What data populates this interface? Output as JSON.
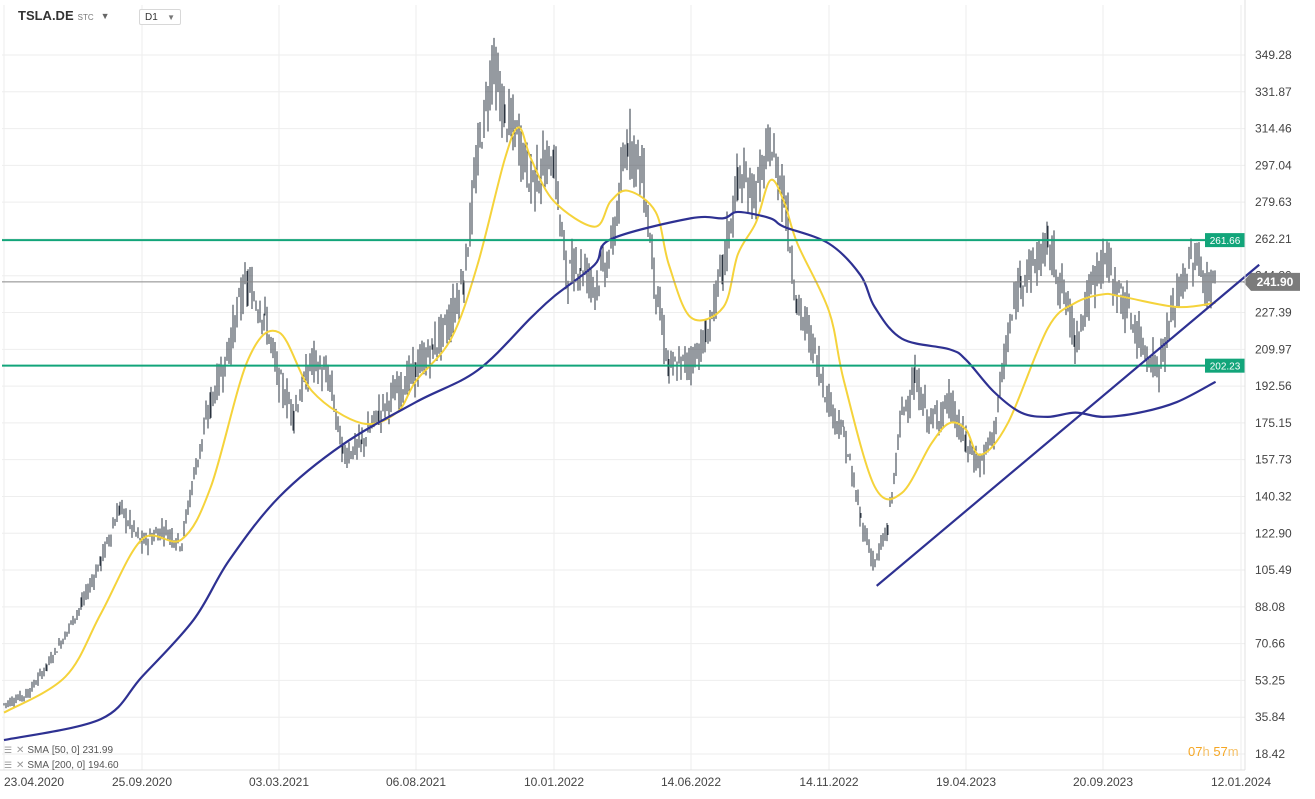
{
  "toolbar": {
    "symbol": "TSLA.DE",
    "exchange": "STC",
    "timeframe": "D1"
  },
  "indicators": [
    {
      "label": "SMA",
      "params": "[50, 0]",
      "value": "231.99",
      "color": "#f5d33b"
    },
    {
      "label": "SMA",
      "params": "[200, 0]",
      "value": "194.60",
      "color": "#2e3192"
    }
  ],
  "countdown": {
    "hours": "07",
    "h_unit": "h",
    "minutes": "57",
    "m_unit": "m"
  },
  "price_label": {
    "value": "241.90"
  },
  "chart_data": {
    "type": "candlestick",
    "title": "",
    "ylim": [
      18.42,
      368
    ],
    "y_ticks": [
      349.28,
      331.87,
      314.46,
      297.04,
      279.63,
      262.21,
      244.8,
      227.39,
      209.97,
      192.56,
      175.15,
      157.73,
      140.32,
      122.9,
      105.49,
      88.08,
      70.66,
      53.25,
      35.84,
      18.42
    ],
    "x_ticks": [
      "23.04.2020",
      "25.09.2020",
      "03.03.2021",
      "06.08.2021",
      "10.01.2022",
      "14.06.2022",
      "14.11.2022",
      "19.04.2023",
      "20.09.2023",
      "12.01.2024"
    ],
    "grid": true,
    "price_series": {
      "name": "TSLA.DE",
      "color": "#2b3440",
      "points": [
        [
          "23.04.2020",
          42
        ],
        [
          "20.05.2020",
          47
        ],
        [
          "10.06.2020",
          60
        ],
        [
          "01.07.2020",
          75
        ],
        [
          "20.07.2020",
          90
        ],
        [
          "10.08.2020",
          110
        ],
        [
          "31.08.2020",
          135
        ],
        [
          "25.09.2020",
          118
        ],
        [
          "20.10.2020",
          125
        ],
        [
          "10.11.2020",
          118
        ],
        [
          "24.11.2020",
          150
        ],
        [
          "14.12.2020",
          185
        ],
        [
          "04.01.2021",
          210
        ],
        [
          "18.01.2021",
          235
        ],
        [
          "26.01.2021",
          240
        ],
        [
          "15.02.2021",
          225
        ],
        [
          "03.03.2021",
          195
        ],
        [
          "20.03.2021",
          180
        ],
        [
          "10.04.2021",
          205
        ],
        [
          "30.04.2021",
          195
        ],
        [
          "15.05.2021",
          160
        ],
        [
          "05.06.2021",
          165
        ],
        [
          "25.06.2021",
          180
        ],
        [
          "15.07.2021",
          190
        ],
        [
          "06.08.2021",
          200
        ],
        [
          "25.08.2021",
          210
        ],
        [
          "15.09.2021",
          225
        ],
        [
          "30.09.2021",
          245
        ],
        [
          "15.10.2021",
          300
        ],
        [
          "01.11.2021",
          345
        ],
        [
          "15.11.2021",
          320
        ],
        [
          "01.12.2021",
          310
        ],
        [
          "15.12.2021",
          290
        ],
        [
          "10.01.2022",
          300
        ],
        [
          "24.01.2022",
          245
        ],
        [
          "10.02.2022",
          250
        ],
        [
          "25.02.2022",
          240
        ],
        [
          "15.03.2022",
          255
        ],
        [
          "04.04.2022",
          310
        ],
        [
          "20.04.2022",
          295
        ],
        [
          "05.05.2022",
          240
        ],
        [
          "20.05.2022",
          200
        ],
        [
          "14.06.2022",
          205
        ],
        [
          "01.07.2022",
          215
        ],
        [
          "20.07.2022",
          250
        ],
        [
          "05.08.2022",
          290
        ],
        [
          "25.08.2022",
          285
        ],
        [
          "10.09.2022",
          305
        ],
        [
          "25.09.2022",
          285
        ],
        [
          "10.10.2022",
          230
        ],
        [
          "25.10.2022",
          215
        ],
        [
          "14.11.2022",
          185
        ],
        [
          "01.12.2022",
          170
        ],
        [
          "20.12.2022",
          130
        ],
        [
          "05.01.2023",
          108
        ],
        [
          "20.01.2023",
          125
        ],
        [
          "05.02.2023",
          180
        ],
        [
          "20.02.2023",
          195
        ],
        [
          "10.03.2023",
          175
        ],
        [
          "31.03.2023",
          185
        ],
        [
          "19.04.2023",
          165
        ],
        [
          "05.05.2023",
          155
        ],
        [
          "20.05.2023",
          170
        ],
        [
          "05.06.2023",
          215
        ],
        [
          "20.06.2023",
          245
        ],
        [
          "05.07.2023",
          250
        ],
        [
          "20.07.2023",
          260
        ],
        [
          "05.08.2023",
          240
        ],
        [
          "20.08.2023",
          215
        ],
        [
          "20.09.2023",
          255
        ],
        [
          "05.10.2023",
          235
        ],
        [
          "20.10.2023",
          215
        ],
        [
          "05.11.2023",
          200
        ],
        [
          "20.11.2023",
          235
        ],
        [
          "05.12.2023",
          255
        ],
        [
          "15.12.2023",
          240
        ],
        [
          "22.12.2023",
          241.9
        ]
      ]
    },
    "series": [
      {
        "name": "SMA [50, 0]",
        "color": "#f5d33b",
        "points": [
          [
            "23.04.2020",
            38
          ],
          [
            "01.07.2020",
            55
          ],
          [
            "10.08.2020",
            85
          ],
          [
            "25.09.2020",
            120
          ],
          [
            "10.11.2020",
            120
          ],
          [
            "14.12.2020",
            145
          ],
          [
            "26.01.2021",
            205
          ],
          [
            "03.03.2021",
            218
          ],
          [
            "10.04.2021",
            190
          ],
          [
            "05.06.2021",
            175
          ],
          [
            "15.07.2021",
            180
          ],
          [
            "06.08.2021",
            195
          ],
          [
            "15.09.2021",
            215
          ],
          [
            "15.10.2021",
            250
          ],
          [
            "15.11.2021",
            300
          ],
          [
            "01.12.2021",
            315
          ],
          [
            "15.12.2021",
            300
          ],
          [
            "10.01.2022",
            280
          ],
          [
            "25.02.2022",
            268
          ],
          [
            "15.03.2022",
            280
          ],
          [
            "04.04.2022",
            285
          ],
          [
            "05.05.2022",
            275
          ],
          [
            "20.05.2022",
            250
          ],
          [
            "14.06.2022",
            225
          ],
          [
            "20.07.2022",
            230
          ],
          [
            "05.08.2022",
            255
          ],
          [
            "25.08.2022",
            270
          ],
          [
            "10.09.2022",
            290
          ],
          [
            "25.09.2022",
            280
          ],
          [
            "10.10.2022",
            260
          ],
          [
            "14.11.2022",
            228
          ],
          [
            "01.12.2022",
            195
          ],
          [
            "05.01.2023",
            145
          ],
          [
            "05.02.2023",
            142
          ],
          [
            "10.03.2023",
            165
          ],
          [
            "31.03.2023",
            175
          ],
          [
            "19.04.2023",
            172
          ],
          [
            "05.05.2023",
            160
          ],
          [
            "05.06.2023",
            175
          ],
          [
            "20.07.2023",
            220
          ],
          [
            "20.08.2023",
            232
          ],
          [
            "20.09.2023",
            236
          ],
          [
            "05.10.2023",
            235
          ],
          [
            "20.11.2023",
            230
          ],
          [
            "22.12.2023",
            231.99
          ]
        ]
      },
      {
        "name": "SMA [200, 0]",
        "color": "#2e3192",
        "points": [
          [
            "23.04.2020",
            25
          ],
          [
            "10.08.2020",
            35
          ],
          [
            "25.09.2020",
            55
          ],
          [
            "24.11.2020",
            82
          ],
          [
            "04.01.2021",
            110
          ],
          [
            "03.03.2021",
            140
          ],
          [
            "15.05.2021",
            165
          ],
          [
            "06.08.2021",
            185
          ],
          [
            "15.10.2021",
            200
          ],
          [
            "15.12.2021",
            225
          ],
          [
            "10.01.2022",
            235
          ],
          [
            "25.02.2022",
            250
          ],
          [
            "15.03.2022",
            262
          ],
          [
            "14.06.2022",
            272
          ],
          [
            "20.07.2022",
            272
          ],
          [
            "05.08.2022",
            275
          ],
          [
            "10.09.2022",
            272
          ],
          [
            "25.09.2022",
            268
          ],
          [
            "14.11.2022",
            260
          ],
          [
            "20.12.2022",
            245
          ],
          [
            "05.01.2023",
            230
          ],
          [
            "05.02.2023",
            215
          ],
          [
            "31.03.2023",
            210
          ],
          [
            "19.04.2023",
            205
          ],
          [
            "20.05.2023",
            190
          ],
          [
            "20.06.2023",
            180
          ],
          [
            "20.07.2023",
            178
          ],
          [
            "20.08.2023",
            180
          ],
          [
            "20.09.2023",
            178
          ],
          [
            "20.10.2023",
            180
          ],
          [
            "20.11.2023",
            185
          ],
          [
            "22.12.2023",
            194.6
          ]
        ]
      }
    ],
    "annotations": {
      "horizontal_lines": [
        {
          "value": 261.66,
          "label": "261.66",
          "color": "#12a57a"
        },
        {
          "value": 202.23,
          "label": "202.23",
          "color": "#12a57a"
        }
      ],
      "current_price": {
        "value": 241.9,
        "label": "241.90",
        "color": "#888888"
      },
      "trendline": {
        "from": [
          "05.01.2023",
          98
        ],
        "to": [
          "25.12.2023",
          250
        ],
        "color": "#2e3192"
      }
    }
  }
}
